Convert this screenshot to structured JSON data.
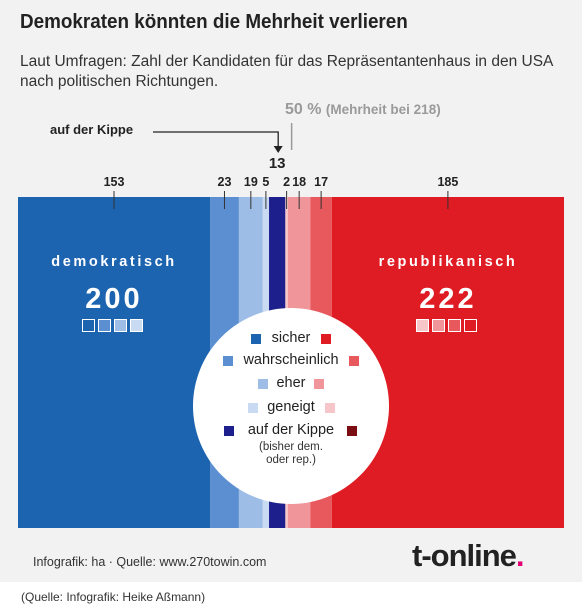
{
  "title": "Demokraten könnten die Mehrheit verlieren",
  "subtitle": "Laut Umfragen: Zahl der Kandidaten für das Repräsentantenhaus in den USA nach politischen Richtungen.",
  "majority": {
    "percent": "50 %",
    "note": "(Mehrheit bei 218)"
  },
  "kippe_label": "auf der Kippe",
  "dem": {
    "label": "demokratisch",
    "total": "200"
  },
  "rep": {
    "label": "republikanisch",
    "total": "222"
  },
  "legend": {
    "items": [
      "sicher",
      "wahrscheinlich",
      "eher",
      "geneigt",
      "auf der Kippe"
    ],
    "kippe_note_1": "(bisher dem.",
    "kippe_note_2": "oder rep.)"
  },
  "footer": {
    "credit": "Infografik: ha  ·  Quelle: www.270towin.com",
    "logo_text": "t-online",
    "logo_dot": "."
  },
  "source_caption": "(Quelle: Infografik: Heike Aßmann)",
  "colors": {
    "dem": [
      "#1c64b0",
      "#5b8fd1",
      "#9dbde6",
      "#c9dbf2"
    ],
    "rep": [
      "#df1b23",
      "#e8595d",
      "#f0969a",
      "#f7c6c8"
    ],
    "tossup": "#1c1f8c",
    "tossup_dem_legend": "#1c1f8c",
    "tossup_rep_legend": "#7a0d12",
    "line": "#333333"
  },
  "chart_data": {
    "type": "bar",
    "orientation": "horizontal-stacked",
    "total_seats": 435,
    "majority_threshold": 218,
    "categories": [
      "dem. sicher",
      "dem. wahrscheinlich",
      "dem. eher",
      "dem. geneigt",
      "auf der Kippe",
      "rep. geneigt",
      "rep. eher",
      "rep. wahrscheinlich",
      "rep. sicher"
    ],
    "values": [
      153,
      23,
      19,
      5,
      13,
      2,
      18,
      17,
      185
    ]
  }
}
